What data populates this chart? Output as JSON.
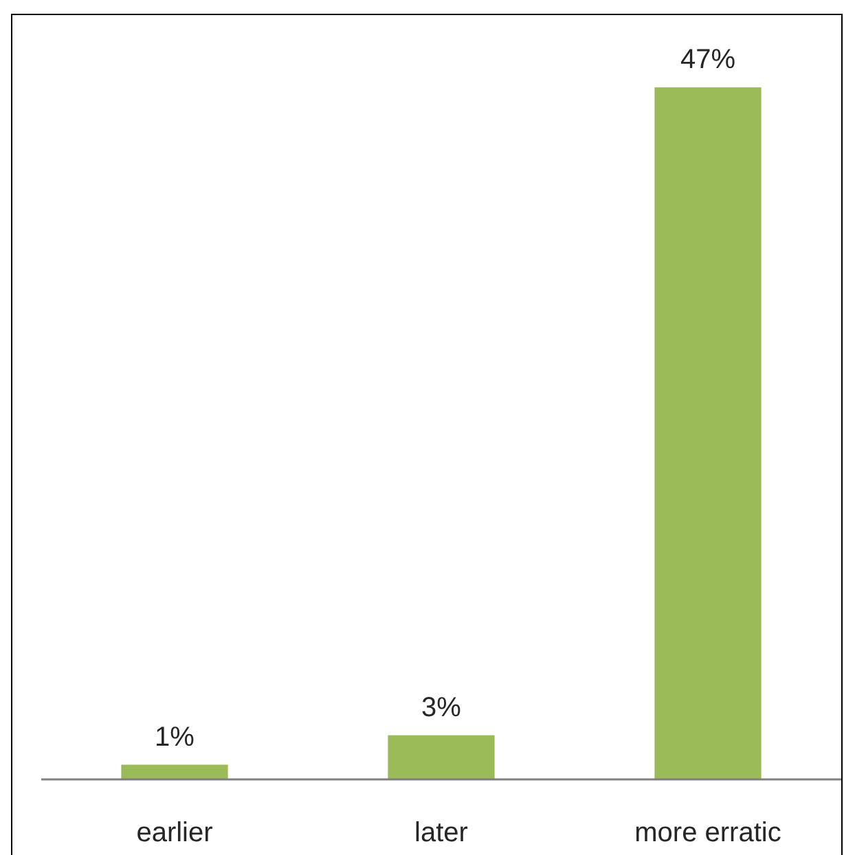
{
  "chart_data": {
    "type": "bar",
    "categories": [
      "earlier",
      "later",
      "more erratic"
    ],
    "values": [
      1,
      3,
      47
    ],
    "value_labels": [
      "1%",
      "3%",
      "47%"
    ],
    "color": "#9bbb59",
    "ylim": [
      0,
      52
    ],
    "tick_labels": "x"
  }
}
